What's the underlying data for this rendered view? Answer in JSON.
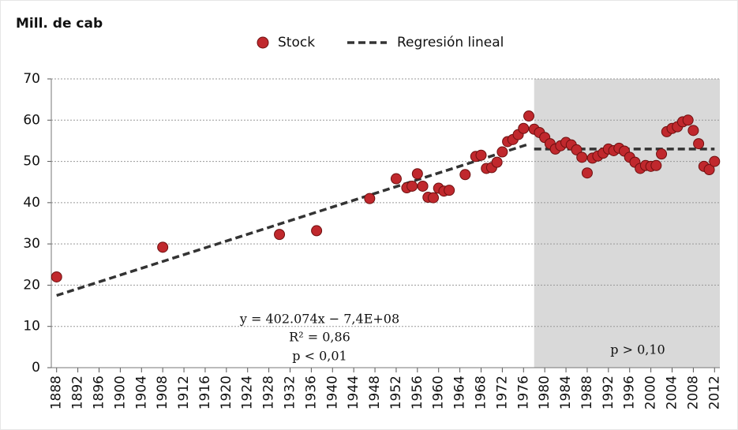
{
  "chart_data": {
    "type": "scatter",
    "y_label": "Mill. de cab",
    "xlim": [
      1887,
      2013
    ],
    "xticks": [
      1888,
      1892,
      1896,
      1900,
      1904,
      1908,
      1912,
      1916,
      1920,
      1924,
      1928,
      1932,
      1936,
      1940,
      1944,
      1948,
      1952,
      1956,
      1960,
      1964,
      1968,
      1972,
      1976,
      1980,
      1984,
      1988,
      1992,
      1996,
      2000,
      2004,
      2008,
      2012
    ],
    "ylim": [
      0,
      70
    ],
    "yticks": [
      0,
      10,
      20,
      30,
      40,
      50,
      60,
      70
    ],
    "grid": true,
    "legend": "top",
    "highlight_xlim": [
      1978,
      2013
    ],
    "highlight_color": "#d9d9d9",
    "series": [
      {
        "name": "Stock",
        "color": "#c0282d",
        "x": [
          1888,
          1908,
          1930,
          1937,
          1947,
          1952,
          1954,
          1955,
          1956,
          1957,
          1958,
          1959,
          1960,
          1961,
          1962,
          1965,
          1967,
          1968,
          1969,
          1970,
          1971,
          1972,
          1973,
          1974,
          1975,
          1976,
          1977,
          1978,
          1979,
          1980,
          1981,
          1982,
          1983,
          1984,
          1985,
          1986,
          1987,
          1988,
          1989,
          1990,
          1991,
          1992,
          1993,
          1994,
          1995,
          1996,
          1997,
          1998,
          1999,
          2000,
          2001,
          2002,
          2003,
          2004,
          2005,
          2006,
          2007,
          2008,
          2009,
          2010,
          2011,
          2012
        ],
        "values": [
          22,
          29.2,
          32.3,
          33.2,
          41,
          45.8,
          43.6,
          44,
          47,
          44,
          41.3,
          41.2,
          43.5,
          42.8,
          43,
          46.8,
          51.2,
          51.5,
          48.3,
          48.5,
          49.8,
          52.3,
          54.8,
          55.3,
          56.5,
          58,
          61,
          57.8,
          57,
          55.8,
          54.3,
          53,
          53.8,
          54.6,
          54,
          52.8,
          51,
          47.2,
          50.8,
          51.3,
          52,
          53,
          52.6,
          53.2,
          52.5,
          51,
          49.8,
          48.3,
          49,
          48.8,
          49,
          51.8,
          57.2,
          58,
          58.4,
          59.6,
          60,
          57.5,
          54.3,
          48.8,
          48,
          50
        ]
      }
    ],
    "regression": {
      "name": "Regresión lineal",
      "color": "#333333",
      "segments": [
        {
          "x": [
            1888,
            1977
          ],
          "values": [
            17.5,
            54.2
          ]
        },
        {
          "x": [
            1978,
            2012
          ],
          "values": [
            53,
            53
          ]
        }
      ]
    },
    "annotations": [
      "y = 402.074x − 7,4E+08",
      "R² = 0,86",
      "p < 0,01",
      "p > 0,10"
    ]
  }
}
